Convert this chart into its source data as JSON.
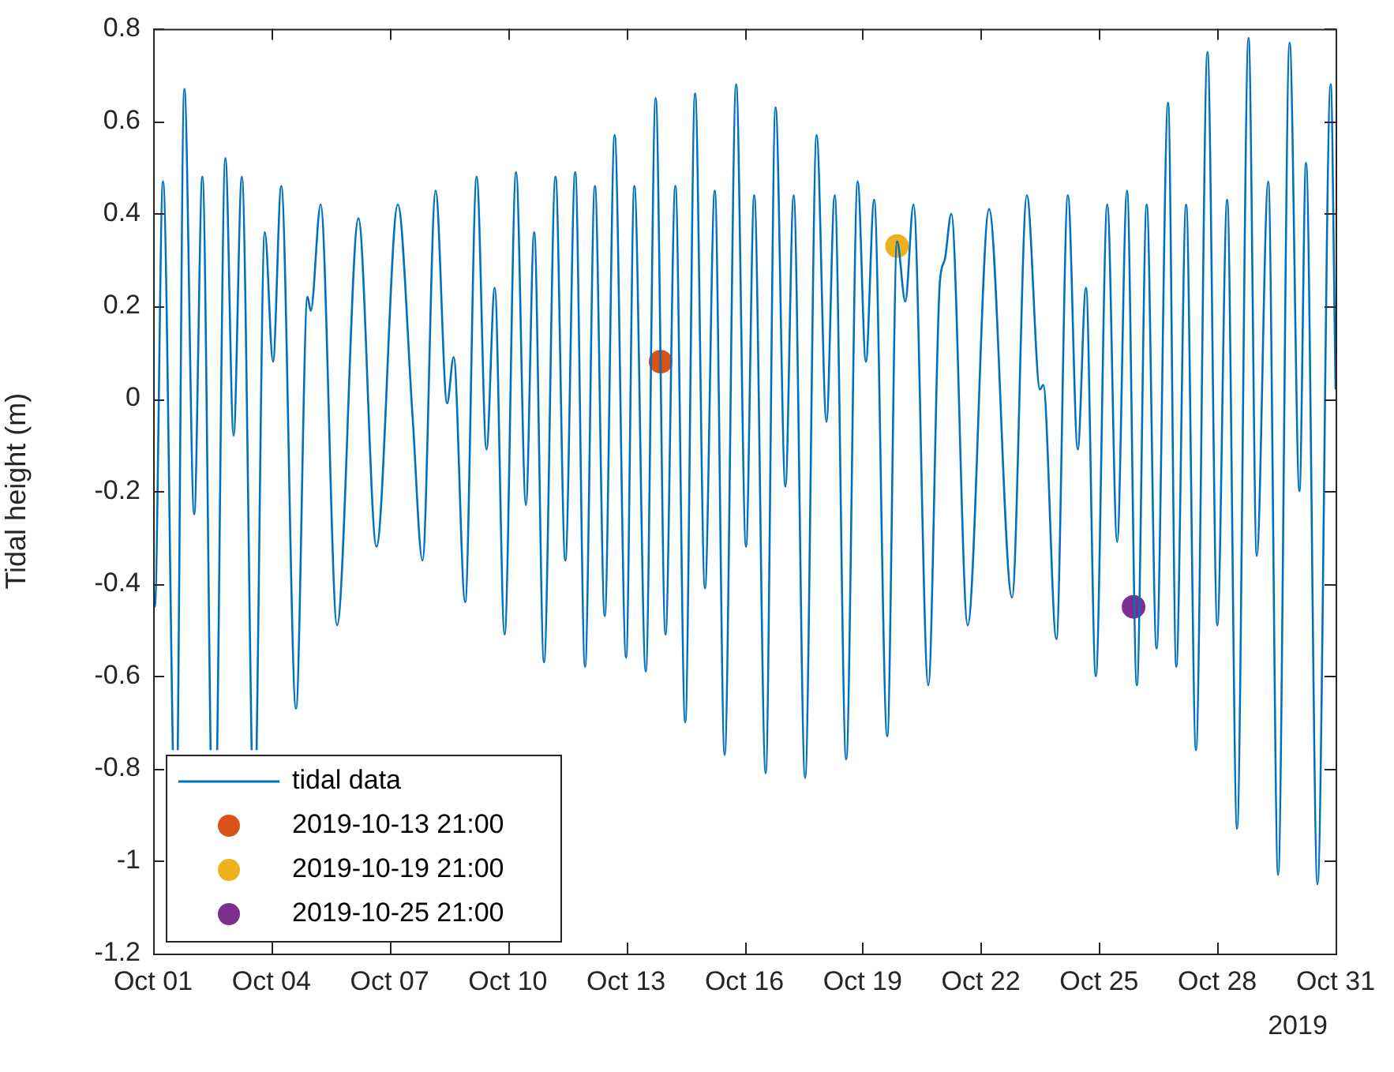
{
  "chart_data": {
    "type": "line",
    "ylabel": "Tidal height (m)",
    "xlim": [
      "2019-10-01",
      "2019-10-31"
    ],
    "xticks": [
      {
        "value": "2019-10-01",
        "label": "Oct 01"
      },
      {
        "value": "2019-10-04",
        "label": "Oct 04"
      },
      {
        "value": "2019-10-07",
        "label": "Oct 07"
      },
      {
        "value": "2019-10-10",
        "label": "Oct 10"
      },
      {
        "value": "2019-10-13",
        "label": "Oct 13"
      },
      {
        "value": "2019-10-16",
        "label": "Oct 16"
      },
      {
        "value": "2019-10-19",
        "label": "Oct 19"
      },
      {
        "value": "2019-10-22",
        "label": "Oct 22"
      },
      {
        "value": "2019-10-25",
        "label": "Oct 25"
      },
      {
        "value": "2019-10-28",
        "label": "Oct 28"
      },
      {
        "value": "2019-10-31",
        "label": "Oct 31"
      }
    ],
    "ylim": [
      -1.2,
      0.8
    ],
    "yticks": [
      -1.2,
      -1,
      -0.8,
      -0.6,
      -0.4,
      -0.2,
      0,
      0.2,
      0.4,
      0.6,
      0.8
    ],
    "grid": false,
    "legend": "bottom left",
    "annotations": [
      "2019"
    ],
    "series": [
      {
        "name": "tidal data",
        "color": "#0072bd",
        "x": [
          "2019-10-01T00:00",
          "2019-10-01T01:00",
          "2019-10-01T06:00",
          "2019-10-01T12:00",
          "2019-10-01T13:00",
          "2019-10-01T15:00",
          "2019-10-01T19:00",
          "2019-10-02T01:00",
          "2019-10-02T06:00",
          "2019-10-02T11:00",
          "2019-10-02T13:00",
          "2019-10-02T15:00",
          "2019-10-02T20:00",
          "2019-10-03T01:00",
          "2019-10-03T06:00",
          "2019-10-03T12:00",
          "2019-10-03T13:00",
          "2019-10-03T15:00",
          "2019-10-03T20:00",
          "2019-10-04T01:00",
          "2019-10-04T06:00",
          "2019-10-04T15:00",
          "2019-10-04T22:00",
          "2019-10-05T00:00",
          "2019-10-05T06:00",
          "2019-10-05T16:00",
          "2019-10-06T05:00",
          "2019-10-06T16:00",
          "2019-10-07T05:00",
          "2019-10-07T14:00",
          "2019-10-07T20:00",
          "2019-10-08T04:00",
          "2019-10-08T11:00",
          "2019-10-08T15:00",
          "2019-10-08T22:00",
          "2019-10-09T05:00",
          "2019-10-09T11:00",
          "2019-10-09T16:00",
          "2019-10-09T22:00",
          "2019-10-10T05:00",
          "2019-10-10T11:00",
          "2019-10-10T16:00",
          "2019-10-10T22:00",
          "2019-10-11T05:00",
          "2019-10-11T11:00",
          "2019-10-11T17:00",
          "2019-10-11T23:00",
          "2019-10-12T05:00",
          "2019-10-12T11:00",
          "2019-10-12T17:00",
          "2019-10-13T00:00",
          "2019-10-13T05:00",
          "2019-10-13T12:00",
          "2019-10-13T18:00",
          "2019-10-14T00:00",
          "2019-10-14T06:00",
          "2019-10-14T12:00",
          "2019-10-14T18:00",
          "2019-10-15T00:00",
          "2019-10-15T06:00",
          "2019-10-15T12:00",
          "2019-10-15T19:00",
          "2019-10-16T01:00",
          "2019-10-16T06:00",
          "2019-10-16T13:00",
          "2019-10-16T19:00",
          "2019-10-17T01:00",
          "2019-10-17T06:00",
          "2019-10-17T13:00",
          "2019-10-17T20:00",
          "2019-10-18T02:00",
          "2019-10-18T07:00",
          "2019-10-18T14:00",
          "2019-10-18T21:00",
          "2019-10-19T02:00",
          "2019-10-19T07:00",
          "2019-10-19T15:00",
          "2019-10-19T21:00",
          "2019-10-20T02:00",
          "2019-10-20T07:00",
          "2019-10-20T16:00",
          "2019-10-20T23:00",
          "2019-10-21T02:00",
          "2019-10-21T06:00",
          "2019-10-21T16:00",
          "2019-10-22T05:00",
          "2019-10-22T19:00",
          "2019-10-23T04:00",
          "2019-10-23T12:00",
          "2019-10-23T14:00",
          "2019-10-23T22:00",
          "2019-10-24T05:00",
          "2019-10-24T11:00",
          "2019-10-24T16:00",
          "2019-10-24T22:00",
          "2019-10-25T05:00",
          "2019-10-25T11:00",
          "2019-10-25T17:00",
          "2019-10-25T23:00",
          "2019-10-26T05:00",
          "2019-10-26T11:00",
          "2019-10-26T18:00",
          "2019-10-26T23:00",
          "2019-10-27T05:00",
          "2019-10-27T11:00",
          "2019-10-27T18:00",
          "2019-10-28T00:00",
          "2019-10-28T06:00",
          "2019-10-28T12:00",
          "2019-10-28T19:00",
          "2019-10-29T00:00",
          "2019-10-29T07:00",
          "2019-10-29T13:00",
          "2019-10-29T20:00",
          "2019-10-30T02:00",
          "2019-10-30T06:00",
          "2019-10-30T13:00",
          "2019-10-30T21:00",
          "2019-10-31T00:00"
        ],
        "values": [
          -0.36,
          -0.45,
          0.47,
          -0.76,
          null,
          -0.76,
          0.67,
          -0.25,
          0.48,
          -0.76,
          null,
          -0.76,
          0.52,
          -0.08,
          0.48,
          -0.76,
          null,
          -0.76,
          0.36,
          0.08,
          0.46,
          -0.67,
          0.22,
          0.19,
          0.42,
          -0.49,
          0.39,
          -0.32,
          0.42,
          -0.04,
          -0.35,
          0.45,
          -0.01,
          0.09,
          -0.44,
          0.48,
          -0.11,
          0.24,
          -0.51,
          0.49,
          -0.23,
          0.36,
          -0.57,
          0.48,
          -0.35,
          0.49,
          -0.58,
          0.46,
          -0.47,
          0.57,
          -0.56,
          0.46,
          -0.59,
          0.65,
          -0.51,
          0.46,
          -0.7,
          0.66,
          -0.41,
          0.45,
          -0.77,
          0.68,
          -0.32,
          0.44,
          -0.81,
          0.63,
          -0.19,
          0.44,
          -0.82,
          0.57,
          -0.05,
          0.44,
          -0.78,
          0.47,
          0.08,
          0.43,
          -0.73,
          0.34,
          0.21,
          0.42,
          -0.62,
          0.25,
          0.3,
          0.4,
          -0.49,
          0.41,
          -0.43,
          0.44,
          0.02,
          0.03,
          -0.52,
          0.44,
          -0.11,
          0.24,
          -0.6,
          0.42,
          -0.31,
          0.45,
          -0.62,
          0.42,
          -0.54,
          0.64,
          -0.58,
          0.42,
          -0.76,
          0.75,
          -0.49,
          0.43,
          -0.93,
          0.78,
          -0.34,
          0.47,
          -1.03,
          0.77,
          -0.2,
          0.51,
          -1.05,
          0.68,
          0.02
        ]
      },
      {
        "name": "2019-10-13 21:00",
        "type": "scatter",
        "marker": "circle",
        "color": "#d95319",
        "x": [
          "2019-10-13T21:00"
        ],
        "values": [
          0.08
        ]
      },
      {
        "name": "2019-10-19 21:00",
        "type": "scatter",
        "marker": "circle",
        "color": "#edb120",
        "x": [
          "2019-10-19T21:00"
        ],
        "values": [
          0.33
        ]
      },
      {
        "name": "2019-10-25 21:00",
        "type": "scatter",
        "marker": "circle",
        "color": "#7e2f8e",
        "x": [
          "2019-10-25T21:00"
        ],
        "values": [
          -0.45
        ]
      }
    ]
  }
}
